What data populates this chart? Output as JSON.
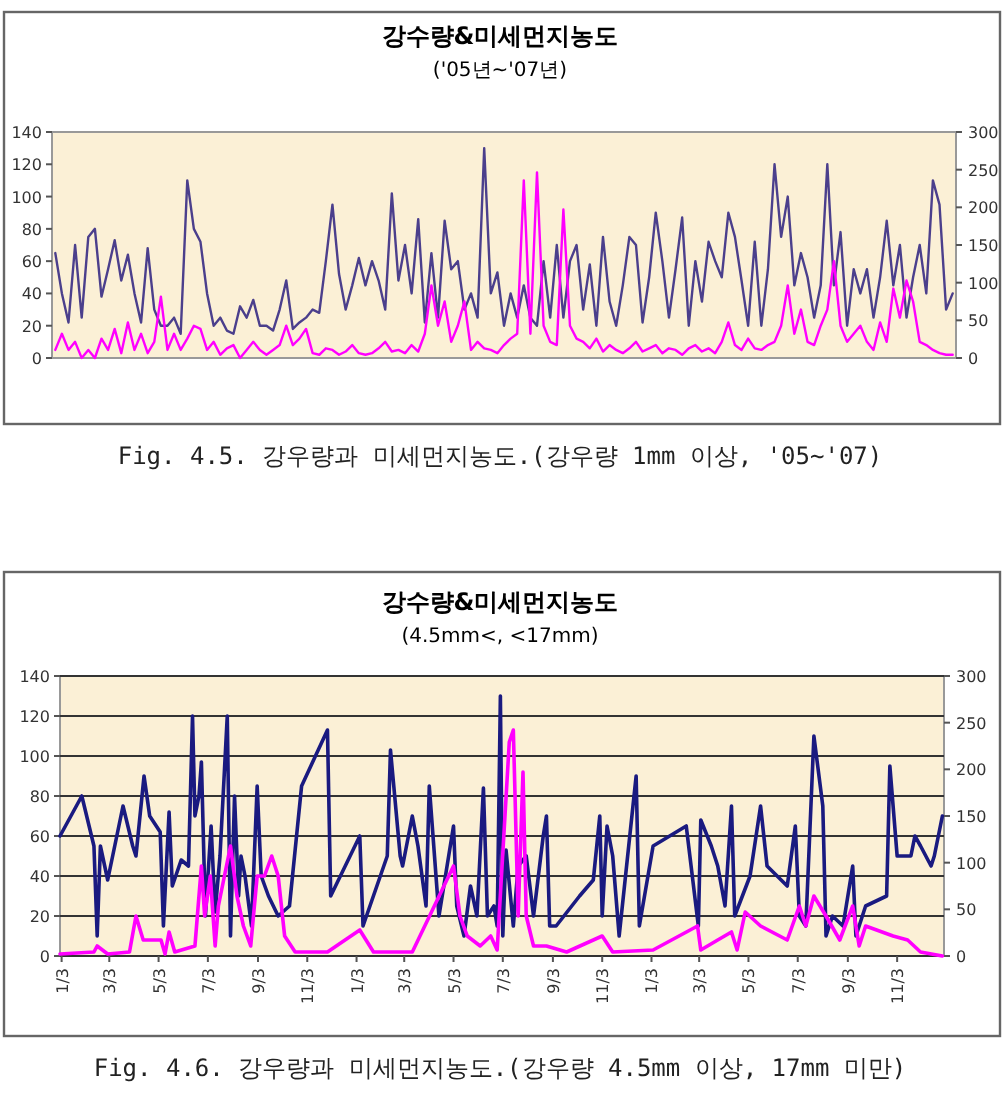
{
  "chart_data": [
    {
      "type": "line",
      "title": "강수량&미세먼지농도",
      "subtitle": "('05년~'07년)",
      "annotations": [
        "Fig. 4.5. 강우량과 미세먼지농도.(강우량 1mm 이상, '05~'07)"
      ],
      "categories": [
        null,
        null,
        null,
        null,
        null,
        null,
        null,
        null,
        null,
        null,
        null,
        null,
        null,
        null,
        null,
        null,
        null,
        null,
        null,
        null,
        null,
        null,
        null,
        null,
        null,
        null,
        null,
        null,
        null,
        null,
        null,
        null,
        null,
        null,
        null,
        null,
        null,
        null,
        null,
        null,
        null,
        null,
        null,
        null,
        null,
        null,
        null,
        null,
        null,
        null,
        null,
        null,
        null,
        null,
        null,
        null,
        null,
        null,
        null,
        null,
        null,
        null,
        null,
        null,
        null,
        null,
        null,
        null,
        null,
        null,
        null,
        null,
        null,
        null,
        null,
        null,
        null,
        null,
        null,
        null,
        null,
        null,
        null,
        null,
        null,
        null,
        null,
        null,
        null,
        null,
        null,
        null,
        null,
        null,
        null,
        null,
        null,
        null,
        null,
        null,
        null,
        null,
        null,
        null,
        null,
        null,
        null,
        null,
        null,
        null,
        null,
        null,
        null,
        null,
        null,
        null,
        null,
        null,
        null,
        null,
        null,
        null,
        null,
        null,
        null,
        null,
        null,
        null,
        null,
        null,
        null,
        null,
        null,
        null,
        null,
        null,
        null
      ],
      "ylim": [
        0,
        140
      ],
      "yticks": [
        0,
        20,
        40,
        60,
        80,
        100,
        120,
        140
      ],
      "y2lim": [
        0,
        300
      ],
      "y2ticks": [
        0,
        50,
        100,
        150,
        200,
        250,
        300
      ],
      "grid": false,
      "tick_labels": "y",
      "series": [
        {
          "color": "#4b3f8c",
          "values": [
            65,
            40,
            22,
            70,
            25,
            75,
            80,
            38,
            55,
            73,
            48,
            64,
            40,
            22,
            68,
            30,
            20,
            20,
            25,
            15,
            110,
            80,
            72,
            40,
            20,
            25,
            17,
            15,
            32,
            25,
            36,
            20,
            20,
            17,
            30,
            48,
            18,
            22,
            25,
            30,
            28,
            60,
            95,
            52,
            30,
            45,
            62,
            45,
            60,
            48,
            30,
            102,
            48,
            70,
            40,
            86,
            22,
            65,
            25,
            85,
            55,
            60,
            30,
            40,
            25,
            130,
            40,
            53,
            20,
            40,
            25,
            45,
            25,
            20,
            60,
            25,
            70,
            25,
            60,
            70,
            30,
            58,
            20,
            75,
            35,
            20,
            45,
            75,
            70,
            22,
            50,
            90,
            60,
            25,
            55,
            87,
            20,
            60,
            35,
            72,
            60,
            50,
            90,
            75,
            48,
            20,
            72,
            20,
            55,
            120,
            75,
            100,
            45,
            65,
            50,
            25,
            45,
            120,
            45,
            78,
            20,
            55,
            40,
            55,
            25,
            50,
            85,
            45,
            70,
            25,
            50,
            70,
            40,
            110,
            95,
            30,
            40
          ]
        },
        {
          "color": "#ff00ff",
          "values": [
            5,
            15,
            5,
            10,
            0,
            5,
            0,
            12,
            5,
            18,
            3,
            22,
            5,
            15,
            3,
            10,
            38,
            5,
            15,
            5,
            12,
            20,
            18,
            5,
            10,
            2,
            6,
            8,
            0,
            5,
            10,
            5,
            2,
            5,
            8,
            20,
            8,
            12,
            18,
            3,
            2,
            6,
            5,
            2,
            4,
            8,
            3,
            2,
            3,
            6,
            10,
            4,
            5,
            3,
            8,
            4,
            15,
            45,
            20,
            35,
            10,
            20,
            35,
            5,
            10,
            6,
            5,
            3,
            8,
            12,
            15,
            110,
            15,
            115,
            20,
            10,
            8,
            92,
            20,
            12,
            10,
            6,
            12,
            4,
            8,
            5,
            3,
            6,
            10,
            4,
            6,
            8,
            3,
            6,
            5,
            2,
            6,
            8,
            4,
            6,
            3,
            10,
            22,
            8,
            5,
            12,
            6,
            5,
            8,
            10,
            20,
            45,
            15,
            30,
            10,
            8,
            20,
            30,
            60,
            20,
            10,
            15,
            20,
            10,
            5,
            22,
            10,
            43,
            25,
            48,
            35,
            10,
            8,
            5,
            3,
            2,
            2
          ]
        }
      ]
    },
    {
      "type": "line",
      "title": "강수량&미세먼지농도",
      "subtitle": "(4.5mm<, <17mm)",
      "annotations": [
        "Fig. 4.6. 강우량과 미세먼지농도.(강우량 4.5mm 이상, 17mm 미만)"
      ],
      "xlim": [
        "2005-01-01",
        "2007-12-31"
      ],
      "xticks": [
        {
          "value": "2005-01-03",
          "label": "1/3"
        },
        {
          "value": "2005-03-03",
          "label": "3/3"
        },
        {
          "value": "2005-05-03",
          "label": "5/3"
        },
        {
          "value": "2005-07-03",
          "label": "7/3"
        },
        {
          "value": "2005-09-03",
          "label": "9/3"
        },
        {
          "value": "2005-11-03",
          "label": "11/3"
        },
        {
          "value": "2006-01-03",
          "label": "1/3"
        },
        {
          "value": "2006-03-03",
          "label": "3/3"
        },
        {
          "value": "2006-05-03",
          "label": "5/3"
        },
        {
          "value": "2006-07-03",
          "label": "7/3"
        },
        {
          "value": "2006-09-03",
          "label": "9/3"
        },
        {
          "value": "2006-11-03",
          "label": "11/3"
        },
        {
          "value": "2007-01-03",
          "label": "1/3"
        },
        {
          "value": "2007-03-03",
          "label": "3/3"
        },
        {
          "value": "2007-05-03",
          "label": "5/3"
        },
        {
          "value": "2007-07-03",
          "label": "7/3"
        },
        {
          "value": "2007-09-03",
          "label": "9/3"
        },
        {
          "value": "2007-11-03",
          "label": "11/3"
        }
      ],
      "ylim": [
        0,
        140
      ],
      "yticks": [
        0,
        20,
        40,
        60,
        80,
        100,
        120,
        140
      ],
      "y2lim": [
        0,
        300
      ],
      "y2ticks": [
        0,
        50,
        100,
        150,
        200,
        250,
        300
      ],
      "grid": "y",
      "series": [
        {
          "color": "#1a1a80",
          "x": [
            "2005-01-01",
            "2005-01-28",
            "2005-02-12",
            "2005-02-16",
            "2005-02-20",
            "2005-03-01",
            "2005-03-20",
            "2005-04-01",
            "2005-04-05",
            "2005-04-10",
            "2005-04-15",
            "2005-04-22",
            "2005-05-05",
            "2005-05-09",
            "2005-05-16",
            "2005-05-20",
            "2005-05-31",
            "2005-06-09",
            "2005-06-14",
            "2005-06-17",
            "2005-06-22",
            "2005-06-25",
            "2005-06-30",
            "2005-07-07",
            "2005-07-12",
            "2005-07-18",
            "2005-07-27",
            "2005-07-31",
            "2005-08-05",
            "2005-08-10",
            "2005-08-13",
            "2005-08-18",
            "2005-08-26",
            "2005-09-02",
            "2005-09-07",
            "2005-09-16",
            "2005-09-28",
            "2005-10-12",
            "2005-10-27",
            "2005-11-28",
            "2005-12-02",
            "2006-01-07",
            "2006-01-11",
            "2006-02-10",
            "2006-02-14",
            "2006-02-26",
            "2006-03-01",
            "2006-03-13",
            "2006-03-20",
            "2006-03-30",
            "2006-04-03",
            "2006-04-15",
            "2006-05-03",
            "2006-05-07",
            "2006-05-16",
            "2006-05-24",
            "2006-06-01",
            "2006-06-09",
            "2006-06-14",
            "2006-06-22",
            "2006-06-26",
            "2006-06-30",
            "2006-07-03",
            "2006-07-07",
            "2006-07-16",
            "2006-07-22",
            "2006-08-01",
            "2006-08-10",
            "2006-08-22",
            "2006-08-26",
            "2006-08-30",
            "2006-09-07",
            "2006-10-06",
            "2006-10-23",
            "2006-10-31",
            "2006-11-03",
            "2006-11-09",
            "2006-11-16",
            "2006-11-24",
            "2006-12-15",
            "2006-12-19",
            "2007-01-05",
            "2007-02-15",
            "2007-03-02",
            "2007-03-05",
            "2007-03-18",
            "2007-03-26",
            "2007-04-04",
            "2007-04-12",
            "2007-04-16",
            "2007-05-05",
            "2007-05-18",
            "2007-05-26",
            "2007-06-20",
            "2007-06-30",
            "2007-07-05",
            "2007-07-13",
            "2007-07-23",
            "2007-08-03",
            "2007-08-07",
            "2007-08-15",
            "2007-08-28",
            "2007-09-09",
            "2007-09-13",
            "2007-09-25",
            "2007-10-21",
            "2007-10-25",
            "2007-11-03",
            "2007-11-20",
            "2007-11-25",
            "2007-12-02",
            "2007-12-15",
            "2007-12-19",
            "2007-12-29"
          ],
          "values": [
            60,
            80,
            55,
            10,
            55,
            38,
            75,
            55,
            50,
            70,
            90,
            70,
            62,
            15,
            72,
            35,
            48,
            45,
            120,
            70,
            80,
            97,
            20,
            65,
            22,
            50,
            120,
            10,
            80,
            30,
            50,
            40,
            15,
            85,
            40,
            30,
            20,
            25,
            85,
            113,
            30,
            60,
            15,
            50,
            103,
            50,
            45,
            70,
            55,
            25,
            85,
            20,
            65,
            25,
            10,
            35,
            20,
            84,
            20,
            25,
            15,
            130,
            10,
            53,
            15,
            45,
            50,
            20,
            60,
            70,
            15,
            15,
            30,
            38,
            70,
            20,
            65,
            50,
            10,
            90,
            15,
            55,
            65,
            15,
            68,
            55,
            45,
            25,
            75,
            20,
            40,
            75,
            45,
            35,
            65,
            20,
            15,
            110,
            75,
            10,
            20,
            15,
            45,
            10,
            25,
            30,
            95,
            50,
            50,
            60,
            55,
            45,
            50,
            70
          ]
        },
        {
          "color": "#ff00ff",
          "x": [
            "2005-01-01",
            "2005-02-12",
            "2005-02-16",
            "2005-03-01",
            "2005-03-28",
            "2005-04-05",
            "2005-04-14",
            "2005-05-06",
            "2005-05-11",
            "2005-05-16",
            "2005-05-23",
            "2005-06-17",
            "2005-06-25",
            "2005-06-29",
            "2005-07-06",
            "2005-07-12",
            "2005-07-16",
            "2005-07-31",
            "2005-08-08",
            "2005-08-16",
            "2005-08-25",
            "2005-09-02",
            "2005-09-11",
            "2005-09-20",
            "2005-09-28",
            "2005-10-06",
            "2005-10-19",
            "2005-11-28",
            "2006-01-07",
            "2006-01-24",
            "2006-03-13",
            "2006-05-03",
            "2006-05-11",
            "2006-05-20",
            "2006-06-05",
            "2006-06-18",
            "2006-06-26",
            "2006-07-11",
            "2006-07-16",
            "2006-07-22",
            "2006-07-28",
            "2006-08-01",
            "2006-08-10",
            "2006-08-26",
            "2006-09-20",
            "2006-11-03",
            "2006-11-16",
            "2007-01-05",
            "2007-03-01",
            "2007-03-05",
            "2007-03-26",
            "2007-04-12",
            "2007-04-19",
            "2007-04-29",
            "2007-05-18",
            "2007-06-20",
            "2007-07-05",
            "2007-07-13",
            "2007-07-23",
            "2007-08-07",
            "2007-08-24",
            "2007-09-09",
            "2007-09-17",
            "2007-09-25",
            "2007-10-29",
            "2007-11-16",
            "2007-12-02",
            "2007-12-29"
          ],
          "values": [
            1,
            2,
            5,
            1,
            2,
            20,
            8,
            8,
            1,
            12,
            2,
            5,
            45,
            20,
            40,
            5,
            25,
            55,
            30,
            15,
            5,
            40,
            40,
            50,
            40,
            10,
            2,
            2,
            13,
            2,
            2,
            45,
            20,
            10,
            5,
            10,
            3,
            107,
            113,
            20,
            92,
            20,
            5,
            5,
            2,
            10,
            2,
            3,
            15,
            3,
            8,
            12,
            3,
            22,
            15,
            8,
            25,
            15,
            30,
            20,
            8,
            25,
            5,
            15,
            10,
            8,
            2,
            0
          ]
        }
      ]
    }
  ]
}
